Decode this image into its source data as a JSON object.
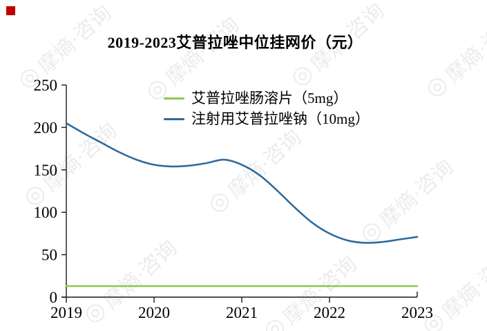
{
  "header": {
    "title": "2019-2023艾普拉唑中位挂网价（元）"
  },
  "decorations": {
    "corner_square_color": "#C00000",
    "watermark_text": "摩熵·咨询",
    "watermark_logo_glyph": "◎"
  },
  "chart_data": {
    "type": "line",
    "title": "2019-2023艾普拉唑中位挂网价（元）",
    "xlabel": "",
    "ylabel": "",
    "xlim": [
      2019,
      2023
    ],
    "ylim": [
      0,
      250
    ],
    "xticks": [
      2019,
      2020,
      2021,
      2022,
      2023
    ],
    "yticks": [
      0,
      50,
      100,
      150,
      200,
      250
    ],
    "grid": false,
    "legend_position": "top-center",
    "axis_color": "#1a1a1a",
    "series": [
      {
        "name": "艾普拉唑肠溶片（5mg）",
        "color": "#8CC84E",
        "points": [
          [
            2019,
            13
          ],
          [
            2020,
            13
          ],
          [
            2021,
            13
          ],
          [
            2022,
            13
          ],
          [
            2023,
            13
          ]
        ]
      },
      {
        "name": "注射用艾普拉唑钠（10mg）",
        "color": "#2E6B9C",
        "points": [
          [
            2019,
            205
          ],
          [
            2019.2,
            193
          ],
          [
            2019.4,
            182
          ],
          [
            2019.6,
            171
          ],
          [
            2019.8,
            162
          ],
          [
            2020,
            156
          ],
          [
            2020.2,
            154
          ],
          [
            2020.4,
            155
          ],
          [
            2020.6,
            158
          ],
          [
            2020.8,
            162
          ],
          [
            2021,
            156
          ],
          [
            2021.2,
            144
          ],
          [
            2021.4,
            126
          ],
          [
            2021.6,
            106
          ],
          [
            2021.8,
            88
          ],
          [
            2022,
            75
          ],
          [
            2022.2,
            67
          ],
          [
            2022.4,
            64
          ],
          [
            2022.6,
            65
          ],
          [
            2022.8,
            68
          ],
          [
            2023,
            71
          ]
        ]
      }
    ]
  }
}
